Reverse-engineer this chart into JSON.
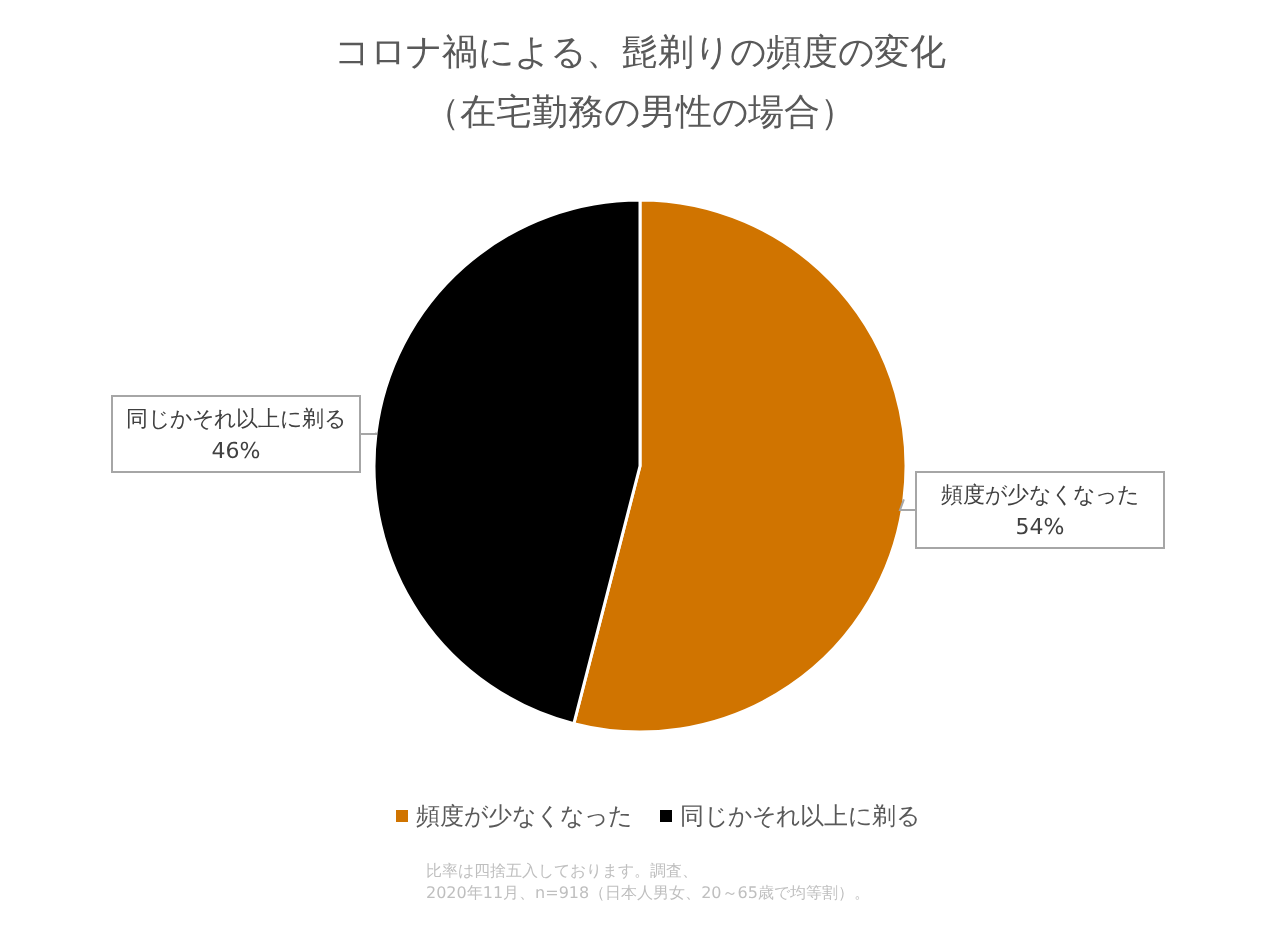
{
  "chart_data": {
    "type": "pie",
    "title": "コロナ禍による、髭剃りの頻度の変化",
    "subtitle": "（在宅勤務の男性の場合）",
    "categories": [
      "頻度が少なくなった",
      "同じかそれ以上に剃る"
    ],
    "values": [
      54,
      46
    ],
    "colors": [
      "#d07400",
      "#000000"
    ],
    "value_labels": [
      "54%",
      "46%"
    ],
    "legend": "bottom",
    "annotations": [
      "比率は四捨五入しております。調査、",
      "2020年11月、n=918（日本人男女、20～65歳で均等割）。"
    ]
  }
}
